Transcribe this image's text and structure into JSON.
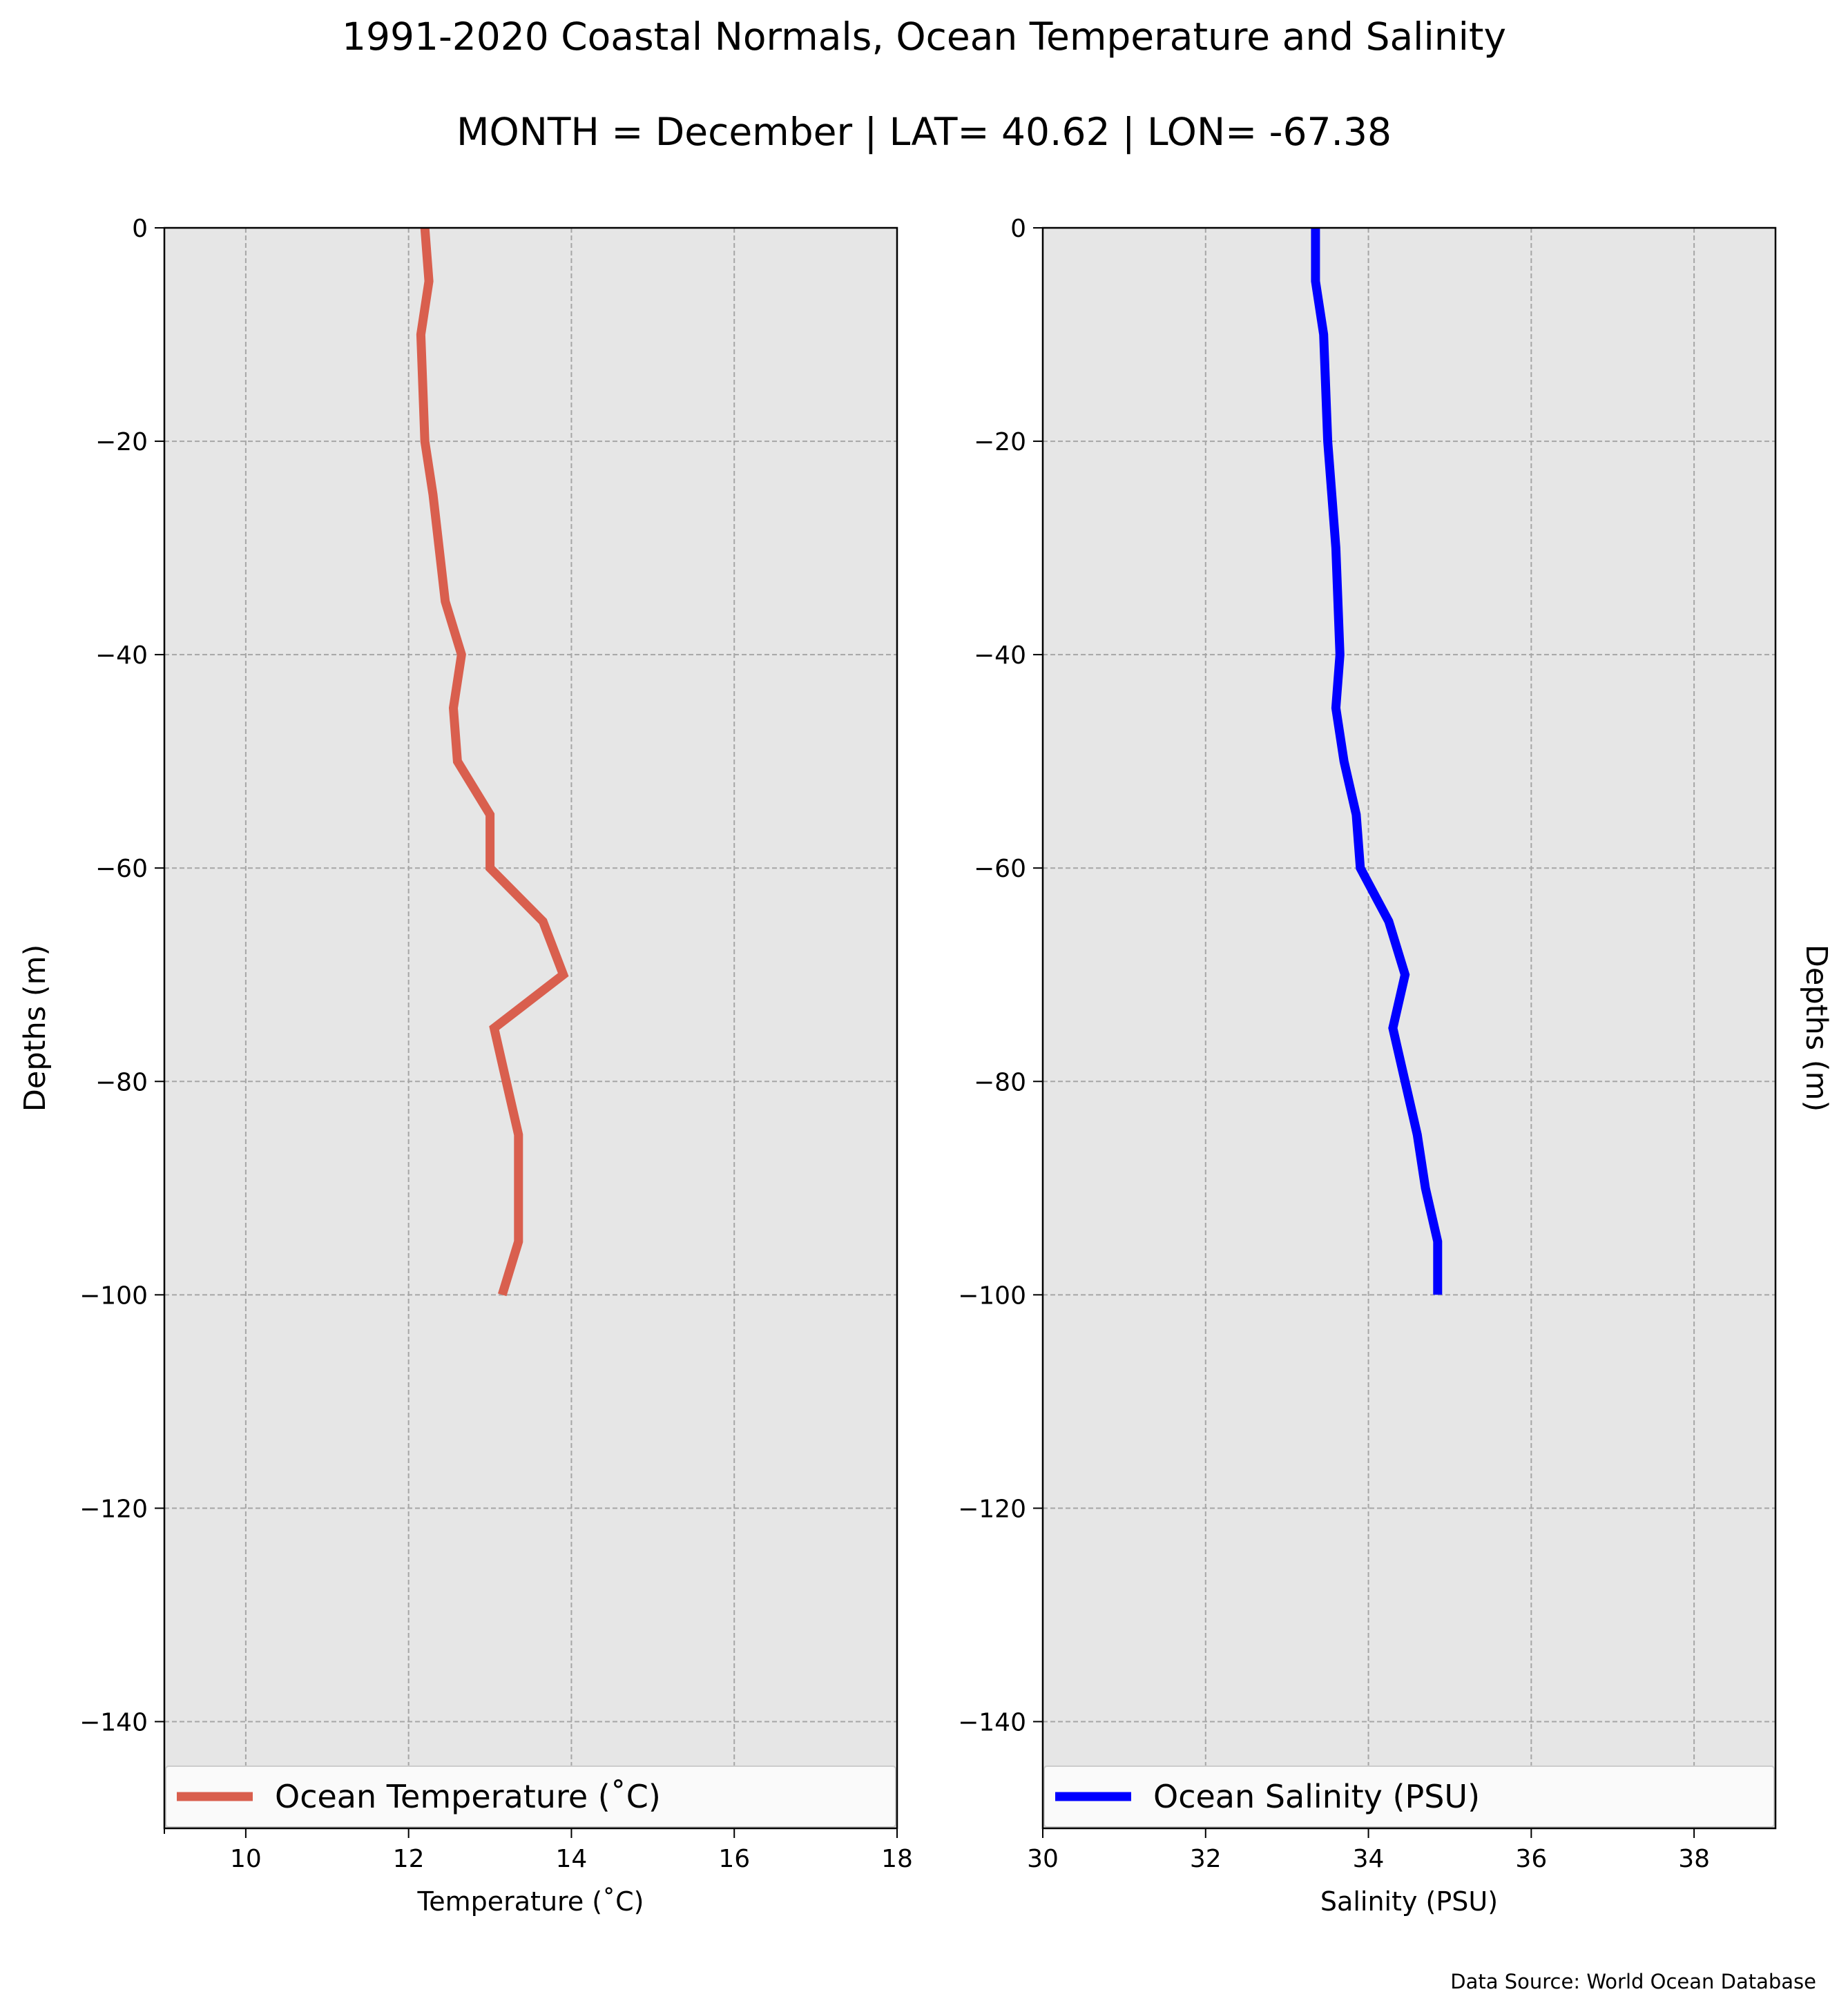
{
  "title_line1": "1991-2020 Coastal Normals, Ocean Temperature and Salinity",
  "title_line2": "MONTH = December | LAT= 40.62 | LON= -67.38",
  "source_note": "Data Source: World Ocean Database",
  "colors": {
    "panel_background": "#e6e6e6",
    "grid": "#a6a6a6",
    "temperature_line": "#d95f4e",
    "salinity_line": "#0000ff"
  },
  "chart_data": [
    {
      "type": "line",
      "xlabel": "Temperature (˚C)",
      "ylabel": "Depths (m)",
      "ylabel_side": "left",
      "xlim": [
        9,
        18
      ],
      "ylim": [
        -150,
        0
      ],
      "xticks": [
        10,
        12,
        14,
        16,
        18
      ],
      "yticks": [
        0,
        -20,
        -40,
        -60,
        -80,
        -100,
        -120,
        -140
      ],
      "grid": true,
      "legend_position": "bottom",
      "series": [
        {
          "name": "Ocean Temperature (˚C)",
          "color": "#d95f4e",
          "x": [
            12.2,
            12.25,
            12.15,
            12.2,
            12.3,
            12.45,
            12.65,
            12.55,
            12.6,
            13.0,
            13.0,
            13.65,
            13.9,
            13.05,
            13.2,
            13.35,
            13.35,
            13.35,
            13.15
          ],
          "y": [
            0,
            -5,
            -10,
            -20,
            -25,
            -35,
            -40,
            -45,
            -50,
            -55,
            -60,
            -65,
            -70,
            -75,
            -80,
            -85,
            -90,
            -95,
            -100
          ]
        }
      ]
    },
    {
      "type": "line",
      "xlabel": "Salinity (PSU)",
      "ylabel": "Depths (m)",
      "ylabel_side": "right",
      "xlim": [
        30,
        39
      ],
      "ylim": [
        -150,
        0
      ],
      "xticks": [
        30,
        32,
        34,
        36,
        38
      ],
      "yticks": [
        0,
        -20,
        -40,
        -60,
        -80,
        -100,
        -120,
        -140
      ],
      "grid": true,
      "legend_position": "bottom",
      "series": [
        {
          "name": "Ocean Salinity (PSU)",
          "color": "#0000ff",
          "x": [
            33.35,
            33.35,
            33.45,
            33.5,
            33.55,
            33.6,
            33.65,
            33.6,
            33.7,
            33.85,
            33.9,
            34.25,
            34.45,
            34.3,
            34.45,
            34.6,
            34.7,
            34.85,
            34.85
          ],
          "y": [
            0,
            -5,
            -10,
            -20,
            -25,
            -30,
            -40,
            -45,
            -50,
            -55,
            -60,
            -65,
            -70,
            -75,
            -80,
            -85,
            -90,
            -95,
            -100
          ]
        }
      ]
    }
  ]
}
